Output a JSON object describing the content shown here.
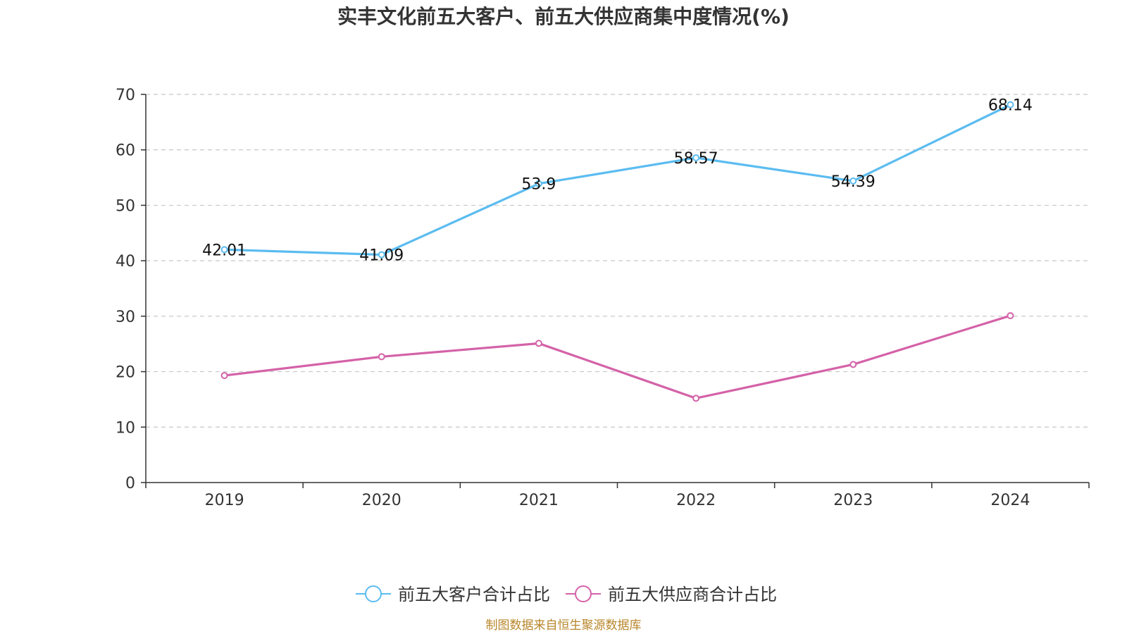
{
  "chart_data": {
    "type": "line",
    "title": "实丰文化前五大客户、前五大供应商集中度情况(%)",
    "categories": [
      "2019",
      "2020",
      "2021",
      "2022",
      "2023",
      "2024"
    ],
    "ylim": [
      0,
      70
    ],
    "yticks": [
      0,
      10,
      20,
      30,
      40,
      50,
      60,
      70
    ],
    "grid": true,
    "legend_position": "bottom",
    "series": [
      {
        "name": "前五大客户合计占比",
        "color": "#5bbcf0",
        "values": [
          42.01,
          41.09,
          53.9,
          58.57,
          54.39,
          68.14
        ],
        "labels": [
          "42.01",
          "41.09",
          "53.9",
          "58.57",
          "54.39",
          "68.14"
        ],
        "show_labels": true
      },
      {
        "name": "前五大供应商合计占比",
        "color": "#d462a8",
        "values": [
          19.3,
          22.7,
          25.1,
          15.2,
          21.3,
          30.1
        ],
        "show_labels": false
      }
    ]
  },
  "source_note": "制图数据来自恒生聚源数据库"
}
